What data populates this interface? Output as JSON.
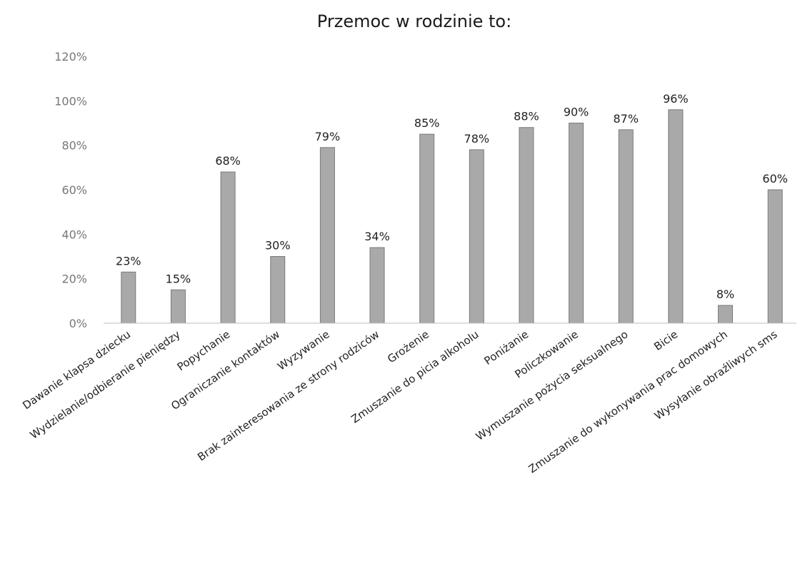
{
  "chart_data": {
    "type": "bar",
    "title": "Przemoc w rodzinie to:",
    "xlabel": "",
    "ylabel": "",
    "categories": [
      "Dawanie klapsa dziecku",
      "Wydzielanie/odbieranie pieniędzy",
      "Popychanie",
      "Ograniczanie kontaktów",
      "Wyzywanie",
      "Brak zainteresowania ze strony rodziców",
      "Grożenie",
      "Zmuszanie do picia alkoholu",
      "Poniżanie",
      "Policzkowanie",
      "Wymuszanie pożycia seksualnego",
      "Bicie",
      "Zmuszanie do wykonywania prac domowych",
      "Wysyłanie obraźliwych sms"
    ],
    "values": [
      23,
      15,
      68,
      30,
      79,
      34,
      85,
      78,
      88,
      90,
      87,
      96,
      8,
      60
    ],
    "value_labels": [
      "23%",
      "15%",
      "68%",
      "30%",
      "79%",
      "34%",
      "85%",
      "78%",
      "88%",
      "90%",
      "87%",
      "96%",
      "8%",
      "60%"
    ],
    "y_ticks": [
      0,
      20,
      40,
      60,
      80,
      100,
      120
    ],
    "y_tick_labels": [
      "0%",
      "20%",
      "40%",
      "60%",
      "80%",
      "100%",
      "120%"
    ],
    "ylim": [
      0,
      120
    ],
    "grid": false,
    "legend": "none",
    "bar_color": "#a9a9a9",
    "bar_edge_color": "#7a7a7a"
  }
}
